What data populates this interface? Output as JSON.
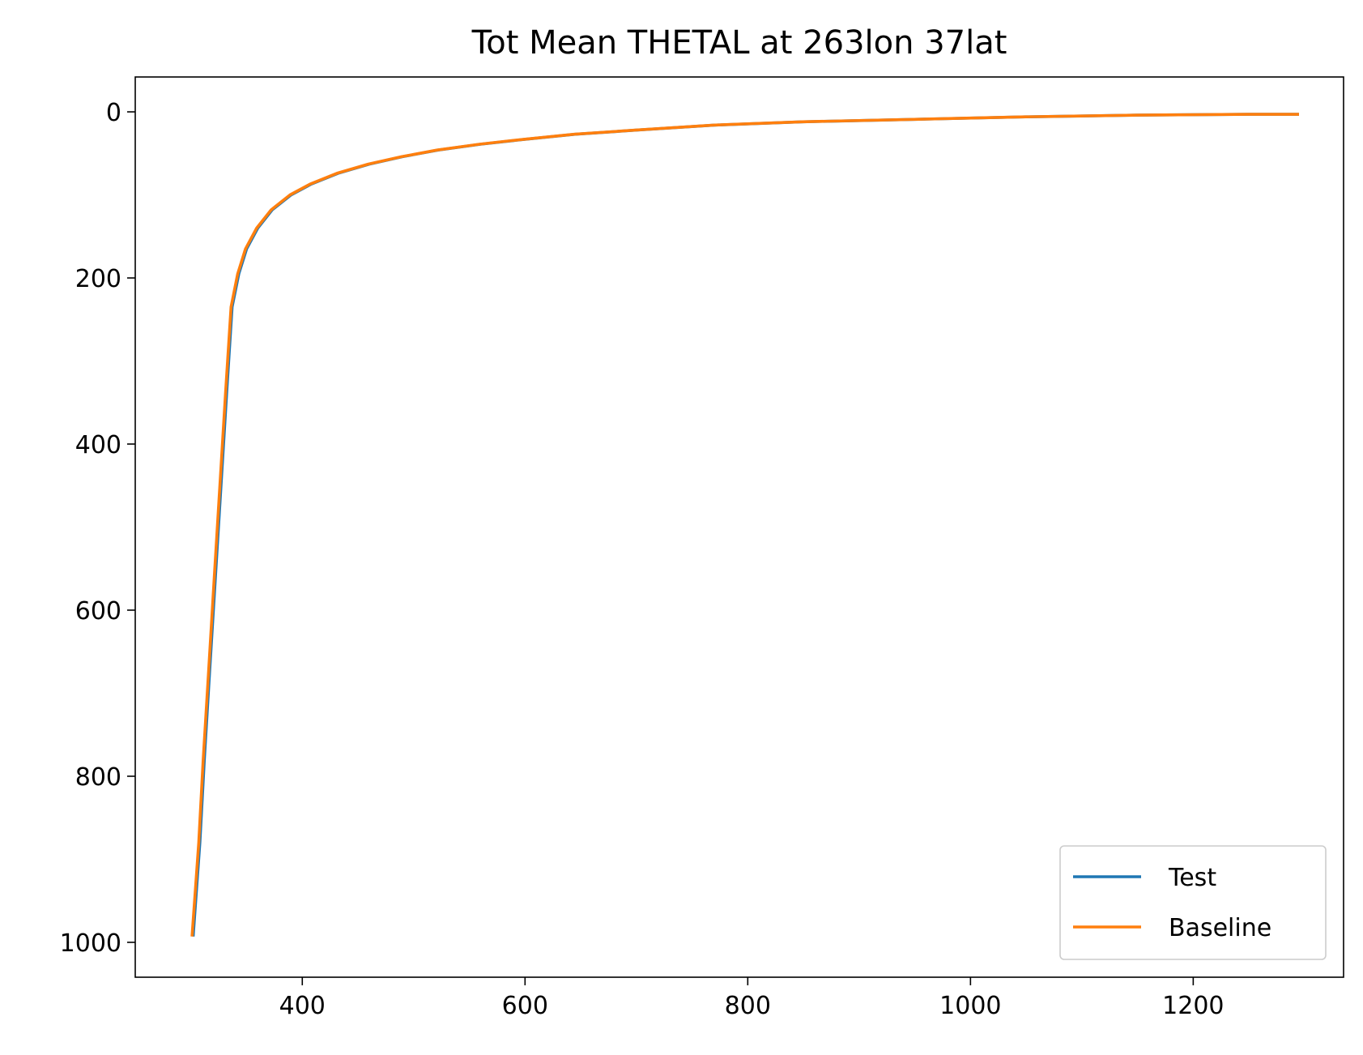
{
  "chart_data": {
    "type": "line",
    "title": "Tot Mean THETAL at 263lon 37lat",
    "xlabel": "",
    "ylabel": "",
    "xlim": [
      250,
      1335
    ],
    "ylim": [
      1042,
      -42
    ],
    "y_inverted": true,
    "grid": false,
    "legend_position": "lower-right",
    "xticks": [
      400,
      600,
      800,
      1000,
      1200
    ],
    "yticks": [
      0,
      200,
      400,
      600,
      800,
      1000
    ],
    "series": [
      {
        "name": "Test",
        "color": "#1f77b4",
        "x": [
          302,
          304,
          308,
          312,
          317,
          322,
          327,
          332,
          337,
          343,
          350,
          360,
          373,
          390,
          408,
          432,
          460,
          490,
          522,
          560,
          600,
          645,
          700,
          770,
          850,
          950,
          1050,
          1150,
          1250,
          1295
        ],
        "y": [
          993,
          955,
          880,
          780,
          670,
          560,
          450,
          340,
          235,
          195,
          165,
          140,
          118,
          100,
          87,
          74,
          63,
          54,
          46,
          39,
          33,
          27,
          22,
          16,
          12,
          9,
          6,
          4,
          3,
          3
        ]
      },
      {
        "name": "Baseline",
        "color": "#ff7f0e",
        "x": [
          301,
          303,
          307,
          311,
          316,
          321,
          326,
          331,
          336,
          342,
          349,
          359,
          372,
          389,
          407,
          431,
          459,
          489,
          521,
          559,
          599,
          644,
          699,
          769,
          849,
          949,
          1049,
          1149,
          1249,
          1295
        ],
        "y": [
          993,
          955,
          880,
          780,
          670,
          560,
          450,
          340,
          235,
          195,
          165,
          140,
          118,
          100,
          87,
          74,
          63,
          54,
          46,
          39,
          33,
          27,
          22,
          16,
          12,
          9,
          6,
          4,
          3,
          3
        ]
      }
    ]
  }
}
